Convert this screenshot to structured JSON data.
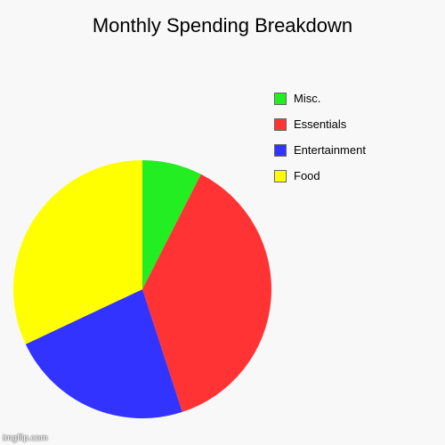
{
  "chart_data": {
    "type": "pie",
    "title": "Monthly Spending Breakdown",
    "start_angle_deg": 0,
    "direction": "clockwise",
    "slices": [
      {
        "label": "Misc.",
        "value": 7.5,
        "color": "#22ee22"
      },
      {
        "label": "Essentials",
        "value": 37.5,
        "color": "#ff3333"
      },
      {
        "label": "Entertainment",
        "value": 23.0,
        "color": "#3333ff"
      },
      {
        "label": "Food",
        "value": 32.0,
        "color": "#ffff00"
      }
    ],
    "legend": {
      "placement": "right",
      "order": [
        "Misc.",
        "Essentials",
        "Entertainment",
        "Food"
      ]
    }
  },
  "watermark": "imgflip.com"
}
